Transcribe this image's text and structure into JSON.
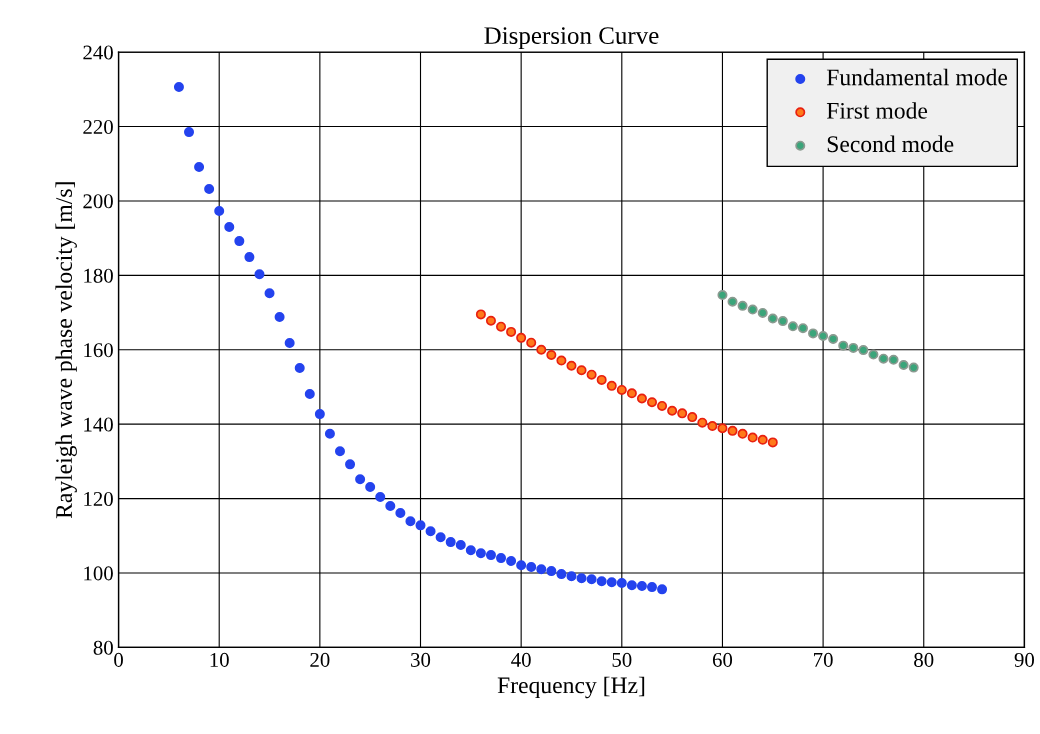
{
  "chart_data": {
    "type": "scatter",
    "title": "Dispersion Curve",
    "xlabel": "Frequency [Hz]",
    "ylabel": "Rayleigh wave phase velocity [m/s]",
    "xlim": [
      0,
      90
    ],
    "xticks": [
      0,
      10,
      20,
      30,
      40,
      50,
      60,
      70,
      80,
      90
    ],
    "ylim": [
      80,
      240
    ],
    "yticks": [
      80,
      100,
      120,
      140,
      160,
      180,
      200,
      220,
      240
    ],
    "grid": true,
    "legend": "top right",
    "marker": "circle",
    "series": [
      {
        "name": "Fundamental mode",
        "color": "#2443ee",
        "x": [
          6,
          7,
          8,
          9,
          10,
          11,
          12,
          13,
          14,
          15,
          16,
          17,
          18,
          19,
          20,
          21,
          22,
          23,
          24,
          25,
          26,
          27,
          28,
          29,
          30,
          31,
          32,
          33,
          34,
          35,
          36,
          37,
          38,
          39,
          40,
          41,
          42,
          43,
          44,
          45,
          46,
          47,
          48,
          49,
          50,
          51,
          52,
          53,
          54
        ],
        "values": [
          230.6,
          218.5,
          209.1,
          203.2,
          197.3,
          193,
          189.2,
          184.9,
          180.3,
          175.2,
          168.8,
          161.8,
          155.1,
          148.1,
          142.7,
          137.4,
          132.7,
          129.2,
          125.2,
          123.1,
          120.4,
          118,
          116.1,
          113.9,
          112.8,
          111.2,
          109.6,
          108.3,
          107.5,
          106.1,
          105.3,
          104.8,
          104,
          103.2,
          102.1,
          101.6,
          101,
          100.5,
          99.7,
          99.1,
          98.6,
          98.3,
          97.8,
          97.5,
          97.3,
          96.7,
          96.5,
          96.2,
          95.6
        ]
      },
      {
        "name": "First mode",
        "color": "#ff7a1a",
        "x": [
          36,
          37,
          38,
          39,
          40,
          41,
          42,
          43,
          44,
          45,
          46,
          47,
          48,
          49,
          50,
          51,
          52,
          53,
          54,
          55,
          56,
          57,
          58,
          59,
          60,
          61,
          62,
          63,
          64,
          65
        ],
        "values": [
          169.5,
          167.8,
          166.2,
          164.8,
          163.2,
          161.9,
          160,
          158.6,
          157.1,
          155.7,
          154.5,
          153.3,
          151.9,
          150.3,
          149.2,
          148.3,
          146.9,
          145.9,
          144.9,
          143.6,
          142.9,
          141.9,
          140.4,
          139.5,
          138.9,
          138.2,
          137.4,
          136.4,
          135.8,
          135.1
        ]
      },
      {
        "name": "Second mode",
        "color": "#3aa57a",
        "x": [
          60,
          61,
          62,
          63,
          64,
          65,
          66,
          67,
          68,
          69,
          70,
          71,
          72,
          73,
          74,
          75,
          76,
          77,
          78,
          79
        ],
        "values": [
          174.7,
          172.9,
          171.8,
          170.8,
          169.9,
          168.4,
          167.7,
          166.3,
          165.8,
          164.4,
          163.7,
          162.9,
          161.1,
          160.5,
          159.9,
          158.7,
          157.6,
          157.3,
          155.9,
          155.2
        ]
      }
    ]
  }
}
